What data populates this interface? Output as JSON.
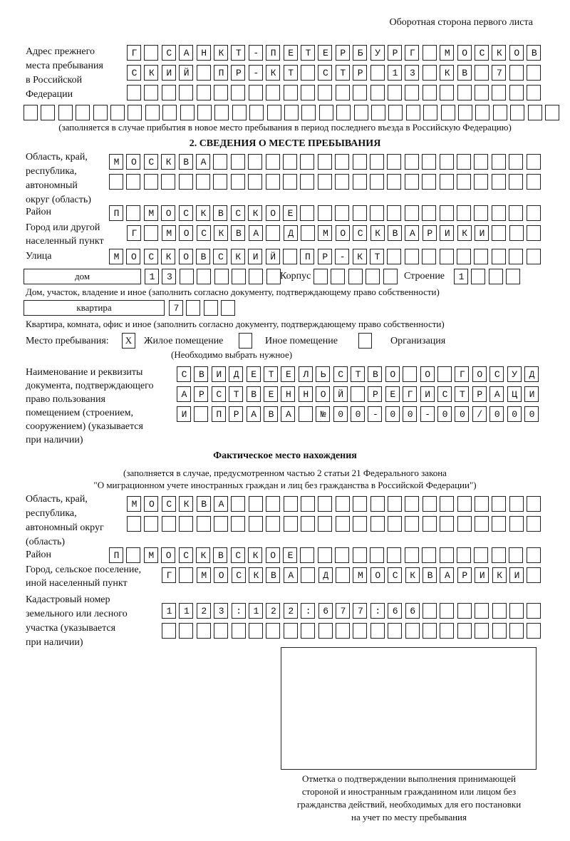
{
  "header": {
    "page_side": "Оборотная сторона первого листа"
  },
  "previous_address": {
    "label": [
      "Адрес прежнего",
      "места пребывания",
      "в Российской",
      "Федерации"
    ],
    "rows": [
      "Г САНКТ-ПЕТЕРБУРГ МОСКОВ",
      "СКИЙ ПР-КТ СТР 13 КВ 7  ",
      "                        ",
      "                               "
    ],
    "note": "(заполняется в случае прибытия в новое место пребывания в период последнего въезда в Российскую Федерацию)"
  },
  "section2": {
    "title": "2. СВЕДЕНИЯ О МЕСТЕ ПРЕБЫВАНИЯ",
    "region_label": [
      "Область, край,",
      "республика,",
      "автономный",
      "округ (область)"
    ],
    "region_rows": [
      "МОСКВА                   ",
      "                         "
    ],
    "district_label": "Район",
    "district_row": "П МОСКВСКОЕ              ",
    "city_label": [
      "Город или другой",
      "населенный пункт"
    ],
    "city_row": "Г МОСКВА Д МОСКВАРИКИ   ",
    "street_label": "Улица",
    "street_row": "МОСКОВСКИЙ ПР-КТ         ",
    "house_type": "дом",
    "house_row": "13      ",
    "korpus_label": "Корпус",
    "korpus_row": "     ",
    "stroenie_label": "Строение",
    "stroenie_row": "1   ",
    "house_note": "Дом, участок, владение и иное (заполнить согласно документу, подтверждающему право собственности)",
    "flat_type": "квартира",
    "flat_row": "7   ",
    "flat_note": "Квартира, комната, офис и иное (заполнить согласно документу, подтверждающему право собственности)",
    "stay_place_label": "Место пребывания:",
    "options": [
      {
        "label": "Жилое помещение",
        "mark": "X",
        "checked": true
      },
      {
        "label": "Иное помещение",
        "mark": "",
        "checked": false
      },
      {
        "label": "Организация",
        "mark": "",
        "checked": false
      }
    ],
    "choose_note": "(Необходимо выбрать нужное)",
    "doc_label": [
      "Наименование и реквизиты",
      "документа, подтверждающего",
      "право пользования",
      "помещением (строением,",
      "сооружением) (указывается",
      "при наличии)"
    ],
    "doc_rows": [
      "СВИДЕТЕЛЬСТВО О ГОСУД",
      "АРСТВЕННОЙ РЕГИСТРАЦИ",
      "И ПРАВА №00-00-00/000"
    ]
  },
  "actual": {
    "title": "Фактическое место нахождения",
    "note": [
      "(заполняется в случае, предусмотренном частью 2 статьи 21 Федерального закона",
      "\"О миграционном учете иностранных граждан и лиц без гражданства в Российской Федерации\")"
    ],
    "region_label": [
      "Область, край,",
      "республика,",
      "автономный округ",
      "(область)"
    ],
    "region_rows": [
      "МОСКВА                  ",
      "                        "
    ],
    "district_label": "Район",
    "district_row": "П МОСКВСКОЕ              ",
    "city_label": [
      "Город, сельское поселение,",
      "иной населенный пункт"
    ],
    "city_row": "Г МОСКВА Д МОСКВАРИКИ ",
    "cadastral_label": [
      "Кадастровый номер",
      "земельного или лесного",
      "участка (указывается",
      "при наличии)"
    ],
    "cadastral_rows": [
      "1123:122:677:66       ",
      "                      "
    ]
  },
  "confirmation": {
    "caption": [
      "Отметка о подтверждении выполнения принимающей",
      "стороной и иностранным гражданином или лицом без",
      "гражданства действий, необходимых для его постановки",
      "на учет по месту пребывания"
    ]
  }
}
